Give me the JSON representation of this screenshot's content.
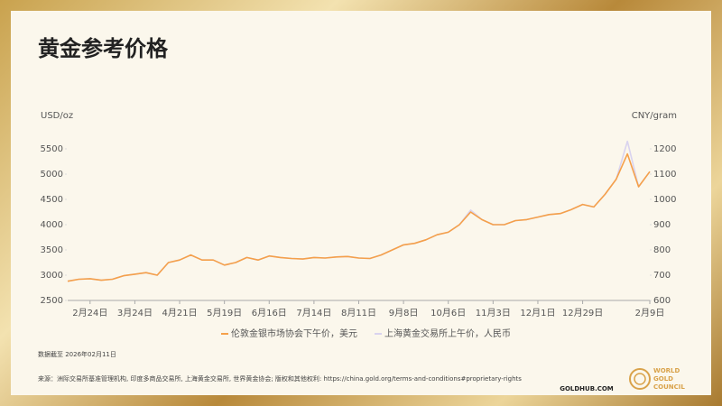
{
  "chart_data": {
    "type": "line",
    "title": "黄金参考价格",
    "y_label": "USD/oz",
    "y2_label": "CNY/gram",
    "categories": [
      null,
      null,
      "2月24日",
      null,
      null,
      null,
      "3月24日",
      null,
      null,
      null,
      "4月21日",
      null,
      null,
      null,
      "5月19日",
      null,
      null,
      null,
      "6月16日",
      null,
      null,
      null,
      "7月14日",
      null,
      null,
      null,
      "8月11日",
      null,
      null,
      null,
      "9月8日",
      null,
      null,
      null,
      "10月6日",
      null,
      null,
      null,
      "11月3日",
      null,
      null,
      null,
      "12月1日",
      null,
      null,
      null,
      "12月29日",
      null,
      null,
      null,
      null,
      null,
      "2月9日"
    ],
    "series": [
      {
        "name": "伦敦金银市场协会下午价，美元",
        "color": "#f5a04a",
        "values": [
          2880,
          2920,
          2930,
          2900,
          2920,
          2990,
          3020,
          3050,
          3000,
          3250,
          3300,
          3400,
          3300,
          3300,
          3200,
          3250,
          3350,
          3300,
          3380,
          3350,
          3330,
          3320,
          3350,
          3340,
          3360,
          3370,
          3340,
          3330,
          3400,
          3500,
          3600,
          3630,
          3700,
          3800,
          3850,
          4000,
          4250,
          4100,
          4000,
          4000,
          4080,
          4100,
          4150,
          4200,
          4220,
          4300,
          4400,
          4350,
          4600,
          4900,
          5400,
          4750,
          5050
        ]
      },
      {
        "name": "上海黄金交易所上午价，人民币",
        "color": "#d9d3ef",
        "axis": "y2",
        "values": [
          676,
          684,
          686,
          680,
          684,
          698,
          704,
          710,
          700,
          750,
          760,
          780,
          760,
          760,
          740,
          750,
          770,
          760,
          776,
          770,
          766,
          764,
          770,
          768,
          772,
          774,
          768,
          766,
          780,
          800,
          820,
          826,
          840,
          860,
          870,
          900,
          958,
          920,
          900,
          900,
          916,
          920,
          930,
          940,
          944,
          960,
          980,
          970,
          1020,
          1080,
          1230,
          1050,
          1110
        ]
      }
    ],
    "ylim": [
      2500,
      5500
    ],
    "yticks": [
      2500,
      3000,
      3500,
      4000,
      4500,
      5000,
      5500
    ],
    "y2lim": [
      600,
      1200
    ],
    "y2ticks": [
      600,
      700,
      800,
      900,
      1000,
      1100,
      1200
    ],
    "note": "数据截至 2026年02月11日",
    "source": "来源：洲际交易所基准管理机构, 印度多商品交易所, 上海黄金交易所, 世界黄金协会; 版权和其他权利: https://china.gold.org/terms-and-conditions#proprietary-rights",
    "site": "GOLDHUB.COM",
    "logo": [
      "WORLD",
      "GOLD",
      "COUNCIL"
    ]
  }
}
